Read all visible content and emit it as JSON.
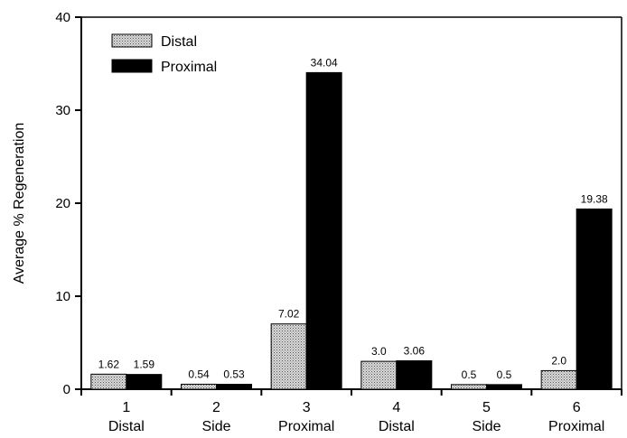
{
  "chart_data": {
    "type": "bar",
    "categories": [
      {
        "number": "1",
        "label": "Distal"
      },
      {
        "number": "2",
        "label": "Side"
      },
      {
        "number": "3",
        "label": "Proximal"
      },
      {
        "number": "4",
        "label": "Distal"
      },
      {
        "number": "5",
        "label": "Side"
      },
      {
        "number": "6",
        "label": "Proximal"
      }
    ],
    "series": [
      {
        "name": "Distal",
        "values": [
          1.62,
          0.54,
          7.02,
          3.0,
          0.5,
          2.0
        ],
        "labels": [
          "1.62",
          "0.54",
          "7.02",
          "3.0",
          "0.5",
          "2.0"
        ],
        "fill": "#c8c8c8",
        "pattern": "stippled"
      },
      {
        "name": "Proximal",
        "values": [
          1.59,
          0.53,
          34.04,
          3.06,
          0.5,
          19.38
        ],
        "labels": [
          "1.59",
          "0.53",
          "34.04",
          "3.06",
          "0.5",
          "19.38"
        ],
        "fill": "#000000"
      }
    ],
    "title": "",
    "xlabel": "",
    "ylabel": "Average % Regeneration",
    "ylim": [
      0,
      40
    ],
    "yticks": [
      "0",
      "10",
      "20",
      "30",
      "40"
    ],
    "grid": false,
    "legend": "top-left"
  }
}
